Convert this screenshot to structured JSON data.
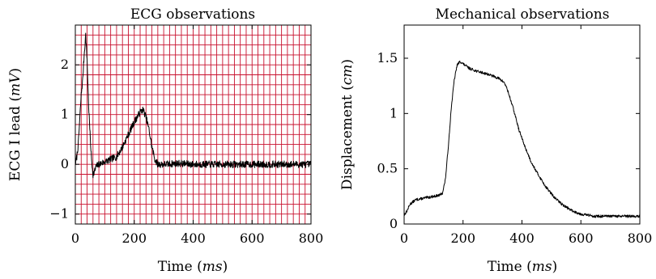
{
  "chart_data": [
    {
      "type": "line",
      "title": "ECG observations",
      "xlabel": "Time",
      "xlabel_unit": "ms",
      "ylabel": "ECG I lead",
      "ylabel_unit": "mV",
      "xlim": [
        0,
        800
      ],
      "ylim": [
        -1.2,
        2.8
      ],
      "xticks": [
        0,
        200,
        400,
        600,
        800
      ],
      "yticks": [
        -1,
        0,
        1,
        2
      ],
      "xtick_labels": [
        "0",
        "200",
        "400",
        "600",
        "800"
      ],
      "ytick_labels": [
        "−1",
        "0",
        "1",
        "2"
      ],
      "grid": true,
      "grid_color": "#c8102e",
      "grid_step_x": 20,
      "grid_step_y": 0.2,
      "noisy": true,
      "series": [
        {
          "color": "#000000",
          "x": [
            0,
            5,
            10,
            15,
            20,
            25,
            30,
            35,
            40,
            45,
            50,
            55,
            60,
            65,
            70,
            80,
            100,
            120,
            140,
            160,
            180,
            200,
            210,
            220,
            230,
            240,
            250,
            260,
            270,
            280,
            300,
            350,
            400,
            450,
            500,
            550,
            600,
            650,
            700,
            750,
            800
          ],
          "y": [
            0.0,
            0.15,
            0.4,
            0.9,
            1.4,
            1.7,
            2.2,
            2.6,
            2.1,
            1.2,
            0.6,
            0.1,
            -0.2,
            -0.15,
            -0.05,
            0.0,
            0.05,
            0.1,
            0.15,
            0.35,
            0.6,
            0.85,
            0.95,
            1.05,
            1.1,
            0.95,
            0.7,
            0.35,
            0.1,
            0.0,
            0.0,
            0.02,
            0.0,
            0.0,
            0.0,
            0.0,
            0.0,
            0.0,
            0.0,
            0.0,
            0.0
          ]
        }
      ]
    },
    {
      "type": "line",
      "title": "Mechanical observations",
      "xlabel": "Time",
      "xlabel_unit": "ms",
      "ylabel": "Displacement",
      "ylabel_unit": "cm",
      "xlim": [
        0,
        800
      ],
      "ylim": [
        0,
        1.8
      ],
      "xticks": [
        0,
        200,
        400,
        600,
        800
      ],
      "yticks": [
        0,
        0.5,
        1,
        1.5
      ],
      "xtick_labels": [
        "0",
        "200",
        "400",
        "600",
        "800"
      ],
      "ytick_labels": [
        "0",
        "0.5",
        "1",
        "1.5"
      ],
      "grid": false,
      "noisy": true,
      "series": [
        {
          "color": "#000000",
          "x": [
            0,
            10,
            20,
            40,
            60,
            80,
            100,
            120,
            130,
            140,
            150,
            160,
            170,
            180,
            190,
            200,
            220,
            250,
            280,
            300,
            320,
            340,
            350,
            370,
            390,
            410,
            430,
            450,
            480,
            510,
            540,
            570,
            600,
            650,
            700,
            750,
            800
          ],
          "y": [
            0.08,
            0.12,
            0.18,
            0.22,
            0.23,
            0.24,
            0.25,
            0.26,
            0.28,
            0.4,
            0.7,
            1.05,
            1.3,
            1.44,
            1.47,
            1.45,
            1.41,
            1.38,
            1.36,
            1.34,
            1.32,
            1.28,
            1.22,
            1.05,
            0.85,
            0.7,
            0.57,
            0.47,
            0.34,
            0.24,
            0.17,
            0.12,
            0.09,
            0.07,
            0.07,
            0.07,
            0.07
          ]
        }
      ]
    }
  ]
}
